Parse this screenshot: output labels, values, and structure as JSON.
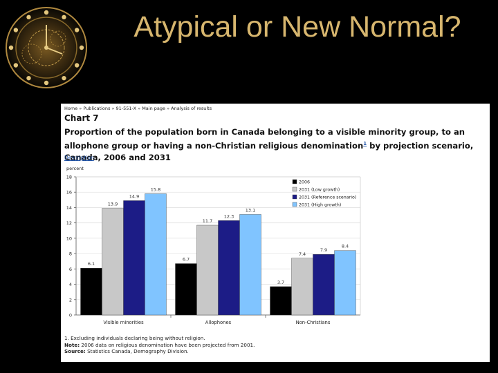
{
  "slide": {
    "title": "Atypical or New Normal?"
  },
  "breadcrumb": [
    "Home",
    "Publications",
    "91-551-X",
    "Main page",
    "Analysis of results"
  ],
  "chart_label": "Chart 7",
  "chart_title_main": "Proportion of the population born in Canada belonging to a visible minority group, to an allophone group or having a non-Christian religious denomination",
  "chart_title_footref": "1",
  "chart_title_end": " by projection scenario, Canada, 2006 and 2031",
  "description_link": "Description",
  "footnotes": {
    "note1": "1. Excluding individuals declaring being without religion.",
    "note_label": "Note:",
    "note_text": " 2006 data on religious denomination have been projected from 2001.",
    "source_label": "Source:",
    "source_text": " Statistics Canada, Demography Division."
  },
  "colors": {
    "s2006": "#000000",
    "low": "#c8c8c8",
    "reference": "#1c1c86",
    "high": "#80c4ff",
    "title_gold": "#d7b66e"
  },
  "chart_data": {
    "type": "bar",
    "ylabel": "percent",
    "ylim": [
      0,
      18
    ],
    "yticks": [
      0,
      2,
      4,
      6,
      8,
      10,
      12,
      14,
      16,
      18
    ],
    "grid": true,
    "legend_position": "top-right",
    "categories": [
      "Visible minorities",
      "Allophones",
      "Non-Christians"
    ],
    "series": [
      {
        "name": "2006",
        "color": "#000000",
        "values": [
          6.1,
          6.7,
          3.7
        ]
      },
      {
        "name": "2031 (Low growth)",
        "color": "#c8c8c8",
        "values": [
          13.9,
          11.7,
          7.4
        ]
      },
      {
        "name": "2031 (Reference scenario)",
        "color": "#1c1c86",
        "values": [
          14.9,
          12.3,
          7.9
        ]
      },
      {
        "name": "2031 (High growth)",
        "color": "#80c4ff",
        "values": [
          15.8,
          13.1,
          8.4
        ]
      }
    ]
  }
}
